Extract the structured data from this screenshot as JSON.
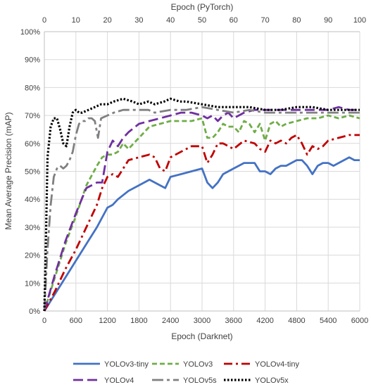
{
  "chart_data": {
    "type": "line",
    "title": "",
    "xlabel": "Epoch (Darknet)",
    "x2label": "Epoch (PyTorch)",
    "ylabel": "Mean Average Precision (mAP)",
    "xlim": [
      0,
      6000
    ],
    "x2lim": [
      0,
      100
    ],
    "ylim": [
      0,
      100
    ],
    "x_ticks": [
      "0",
      "600",
      "1200",
      "1800",
      "2400",
      "3000",
      "3600",
      "4200",
      "4800",
      "5400",
      "6000"
    ],
    "x2_ticks": [
      "0",
      "10",
      "20",
      "30",
      "40",
      "50",
      "60",
      "70",
      "80",
      "90",
      "100"
    ],
    "y_ticks": [
      "0%",
      "10%",
      "20%",
      "30%",
      "40%",
      "50%",
      "60%",
      "70%",
      "80%",
      "90%",
      "100%"
    ],
    "grid": true,
    "legend_position": "bottom",
    "series": [
      {
        "name": "YOLOv3-tiny",
        "axis": "darknet",
        "color": "#4472c4",
        "dash": "solid",
        "x": [
          0,
          200,
          400,
          600,
          800,
          1000,
          1200,
          1300,
          1400,
          1600,
          1800,
          2000,
          2100,
          2200,
          2300,
          2400,
          2600,
          2800,
          3000,
          3100,
          3200,
          3300,
          3400,
          3600,
          3800,
          4000,
          4100,
          4200,
          4300,
          4400,
          4500,
          4600,
          4700,
          4800,
          4900,
          5000,
          5100,
          5200,
          5300,
          5400,
          5500,
          5600,
          5700,
          5800,
          5900,
          6000
        ],
        "y": [
          0,
          6,
          12,
          18,
          24,
          30,
          37,
          38,
          40,
          43,
          45,
          47,
          46,
          45,
          44,
          48,
          49,
          50,
          51,
          46,
          44,
          46,
          49,
          51,
          53,
          53,
          50,
          50,
          49,
          51,
          52,
          52,
          53,
          54,
          54,
          52,
          49,
          52,
          53,
          53,
          52,
          53,
          54,
          55,
          54,
          54
        ]
      },
      {
        "name": "YOLOv3",
        "axis": "darknet",
        "color": "#70ad47",
        "dash": "dashed",
        "x": [
          0,
          200,
          400,
          600,
          800,
          1000,
          1100,
          1200,
          1300,
          1400,
          1500,
          1600,
          1700,
          1800,
          2000,
          2200,
          2400,
          2600,
          2800,
          3000,
          3100,
          3200,
          3300,
          3400,
          3500,
          3600,
          3700,
          3800,
          3900,
          4000,
          4100,
          4200,
          4300,
          4400,
          4500,
          4600,
          4800,
          5000,
          5200,
          5400,
          5600,
          5800,
          6000
        ],
        "y": [
          0,
          12,
          24,
          34,
          45,
          52,
          55,
          56,
          56,
          57,
          60,
          58,
          60,
          62,
          66,
          67,
          68,
          68,
          68,
          69,
          62,
          62,
          64,
          67,
          66,
          66,
          64,
          68,
          67,
          64,
          67,
          61,
          67,
          68,
          66,
          67,
          68,
          69,
          69,
          70,
          69,
          70,
          69
        ]
      },
      {
        "name": "YOLOv4-tiny",
        "axis": "darknet",
        "color": "#c00000",
        "dash": "dashdot",
        "x": [
          0,
          200,
          400,
          600,
          800,
          1000,
          1100,
          1200,
          1300,
          1400,
          1600,
          1800,
          2000,
          2100,
          2200,
          2300,
          2400,
          2600,
          2800,
          3000,
          3100,
          3200,
          3300,
          3400,
          3600,
          3800,
          4000,
          4100,
          4200,
          4300,
          4400,
          4500,
          4600,
          4700,
          4800,
          4900,
          5000,
          5100,
          5200,
          5300,
          5400,
          5600,
          5800,
          6000
        ],
        "y": [
          0,
          7,
          15,
          22,
          30,
          38,
          44,
          48,
          49,
          48,
          54,
          55,
          56,
          55,
          51,
          50,
          55,
          57,
          59,
          59,
          53,
          56,
          60,
          60,
          58,
          61,
          60,
          58,
          57,
          61,
          60,
          61,
          60,
          62,
          63,
          60,
          56,
          59,
          58,
          59,
          61,
          62,
          63,
          63
        ]
      },
      {
        "name": "YOLOv4",
        "axis": "darknet",
        "color": "#7030a0",
        "dash": "longdash",
        "x": [
          0,
          200,
          400,
          600,
          800,
          1000,
          1100,
          1200,
          1300,
          1400,
          1500,
          1600,
          1800,
          2000,
          2200,
          2400,
          2600,
          2800,
          3000,
          3100,
          3200,
          3300,
          3400,
          3500,
          3600,
          3800,
          4000,
          4200,
          4400,
          4600,
          4800,
          5000,
          5200,
          5400,
          5600,
          5800,
          6000
        ],
        "y": [
          0,
          13,
          25,
          35,
          44,
          46,
          46,
          57,
          61,
          59,
          62,
          64,
          67,
          68,
          69,
          70,
          71,
          71,
          70,
          69,
          70,
          68,
          70,
          71,
          69,
          71,
          72,
          72,
          72,
          72,
          72,
          72,
          72,
          72,
          73,
          72,
          72
        ]
      },
      {
        "name": "YOLOv5s",
        "axis": "pytorch",
        "color": "#808080",
        "dash": "longdashdot",
        "x": [
          0,
          1,
          2,
          3,
          4,
          5,
          6,
          7,
          8,
          9,
          10,
          11,
          12,
          13,
          14,
          15,
          16,
          17,
          18,
          20,
          22,
          25,
          28,
          30,
          33,
          35,
          40,
          45,
          50,
          55,
          60,
          65,
          70,
          75,
          80,
          85,
          90,
          95,
          100
        ],
        "y": [
          0,
          22,
          38,
          48,
          51,
          52,
          51,
          52,
          54,
          57,
          63,
          67,
          68,
          68,
          69,
          69,
          68,
          62,
          69,
          70,
          71,
          72,
          72,
          72,
          72,
          71,
          72,
          72,
          73,
          72,
          71,
          72,
          71,
          71,
          71,
          71,
          71,
          71,
          71
        ]
      },
      {
        "name": "YOLOv5x",
        "axis": "pytorch",
        "color": "#000000",
        "dash": "dotted",
        "x": [
          0,
          0.5,
          1,
          2,
          3,
          4,
          5,
          6,
          7,
          8,
          9,
          10,
          11,
          12,
          14,
          16,
          18,
          20,
          22,
          25,
          28,
          30,
          33,
          35,
          38,
          40,
          43,
          45,
          50,
          55,
          60,
          65,
          70,
          75,
          80,
          85,
          90,
          95,
          100
        ],
        "y": [
          0,
          25,
          55,
          66,
          69,
          69,
          65,
          60,
          59,
          66,
          71,
          72,
          71,
          71,
          72,
          73,
          74,
          74,
          75,
          76,
          75,
          74,
          75,
          74,
          75,
          76,
          75,
          75,
          74,
          73,
          73,
          73,
          72,
          72,
          73,
          73,
          72,
          72,
          72
        ]
      }
    ]
  }
}
